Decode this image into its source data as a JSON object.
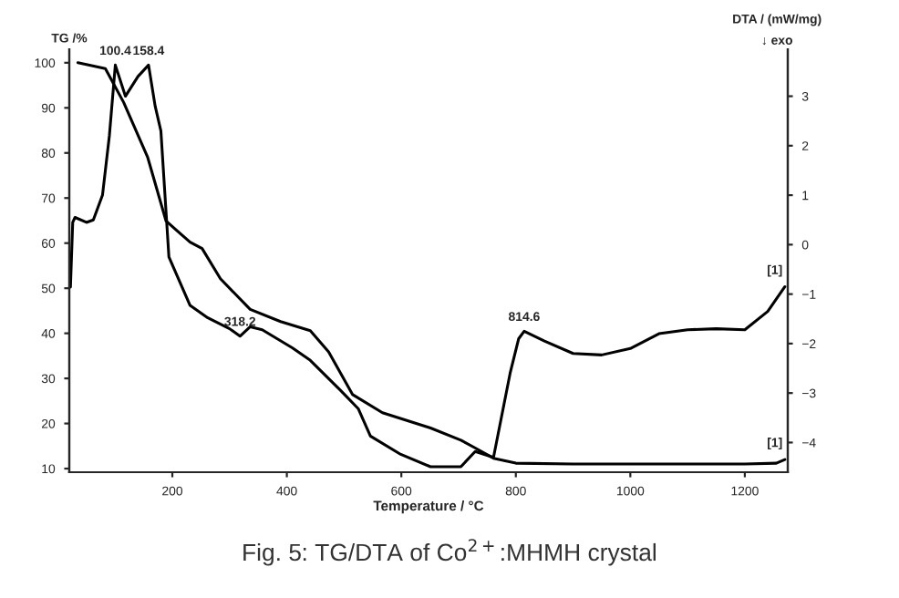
{
  "chart_data": {
    "type": "line",
    "title": "Fig. 5: TG/DTA of Co$^{2+}$:MHMH crystal",
    "xlabel": "Temperature / °C",
    "ylabel": "TG /%",
    "y2label": "DTA / (mW/mg)",
    "series": [
      {
        "color": "#000000",
        "x": [
          35,
          83,
          115,
          157,
          189,
          231,
          252,
          284,
          336,
          389,
          441,
          473,
          515,
          567,
          651,
          704,
          730,
          761,
          800,
          900,
          1000,
          1100,
          1200,
          1255,
          1270
        ],
        "values": [
          100,
          98.7,
          91.2,
          79,
          64.9,
          60.2,
          58.8,
          52.1,
          45.3,
          42.6,
          40.6,
          35.9,
          26.4,
          22.4,
          19,
          16.3,
          14.5,
          12.3,
          11.2,
          11,
          11,
          11,
          11,
          11.2,
          12
        ]
      },
      {
        "color": "#000000",
        "axis": "y2",
        "x": [
          22,
          26,
          30,
          50,
          62,
          78,
          90,
          100.4,
          118,
          140,
          158.4,
          170,
          180,
          194,
          231,
          262,
          300,
          318.2,
          336,
          357,
          410,
          441,
          494,
          525,
          546,
          599,
          651,
          704,
          729,
          761,
          790,
          805,
          814.6,
          850,
          900,
          950,
          1000,
          1050,
          1100,
          1150,
          1200,
          1240,
          1270
        ],
        "values": [
          -0.86,
          0.45,
          0.55,
          0.45,
          0.5,
          1.0,
          2.2,
          3.63,
          3.0,
          3.4,
          3.63,
          2.8,
          2.3,
          -0.25,
          -1.23,
          -1.48,
          -1.7,
          -1.85,
          -1.66,
          -1.72,
          -2.09,
          -2.34,
          -2.95,
          -3.32,
          -3.87,
          -4.24,
          -4.49,
          -4.49,
          -4.18,
          -4.3,
          -2.6,
          -1.9,
          -1.75,
          -1.95,
          -2.2,
          -2.23,
          -2.1,
          -1.8,
          -1.72,
          -1.7,
          -1.72,
          -1.35,
          -0.85
        ]
      }
    ],
    "annotations": [
      {
        "text": "100.4",
        "x": 100.4,
        "y": 99.5
      },
      {
        "text": "158.4",
        "x": 158.4,
        "y": 99.5
      },
      {
        "text": "318.2",
        "x": 318.2,
        "y": 39.4
      },
      {
        "text": "814.6",
        "x": 814.6,
        "y": 40.5
      },
      {
        "text": "[1]",
        "x": 1270,
        "y": 50.3
      },
      {
        "text": "[1]",
        "x": 1270,
        "y": 12
      },
      "↓ exo"
    ],
    "xlim": [
      20,
      1275
    ],
    "xticks": [
      200,
      400,
      600,
      800,
      1000,
      1200
    ],
    "ylim": [
      9.2,
      103
    ],
    "yticks": [
      10,
      20,
      30,
      40,
      50,
      60,
      70,
      80,
      90,
      100
    ],
    "y2lim": [
      -4.6,
      3.95
    ],
    "y2ticks": [
      -4,
      -3,
      -2,
      -1,
      0,
      1,
      2,
      3
    ],
    "grid": false,
    "legend": false,
    "line_style": "solid",
    "marker": "none"
  }
}
